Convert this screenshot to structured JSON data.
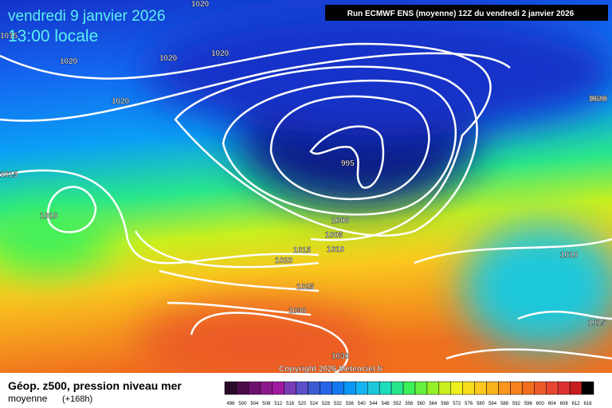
{
  "header": {
    "date": "vendredi 9 janvier 2026",
    "time": "13:00 locale",
    "run": "Run ECMWF ENS (moyenne) 12Z du vendredi 2 janvier 2026"
  },
  "copyright": "Copyright 2026 Meteociel.fr",
  "footer": {
    "title": "Géop. z500, pression niveau mer",
    "subtitle": "moyenne",
    "lead": "(+168h)"
  },
  "isobar_labels": [
    "1015",
    "1010",
    "1020",
    "1020",
    "1020",
    "1020",
    "1020",
    "1015",
    "1010",
    "995",
    "1000",
    "1005",
    "1010",
    "1015",
    "1020",
    "1025",
    "1030",
    "1030",
    "1020",
    "1010",
    "1015"
  ],
  "colorbar": {
    "labels": [
      496,
      500,
      504,
      508,
      512,
      516,
      520,
      524,
      528,
      532,
      536,
      540,
      544,
      548,
      552,
      556,
      560,
      564,
      568,
      572,
      576,
      580,
      584,
      588,
      592,
      596,
      600,
      604,
      608,
      612,
      616
    ],
    "colors": [
      "#2a0a2a",
      "#4a0a4a",
      "#6e106e",
      "#8c1a8c",
      "#a01aa0",
      "#7a3cb4",
      "#5a50c8",
      "#3c5ad2",
      "#2864e6",
      "#1478f0",
      "#0a96f5",
      "#14b4f0",
      "#1ec8dc",
      "#1edcbe",
      "#28e68c",
      "#3cf05a",
      "#64f03c",
      "#96f028",
      "#c8f01e",
      "#f0f01e",
      "#f8dc1e",
      "#fac81e",
      "#fab41e",
      "#fa961e",
      "#f8821e",
      "#f06e1e",
      "#eb5a28",
      "#e64632",
      "#dc3232",
      "#c81e1e",
      "#000000"
    ]
  }
}
